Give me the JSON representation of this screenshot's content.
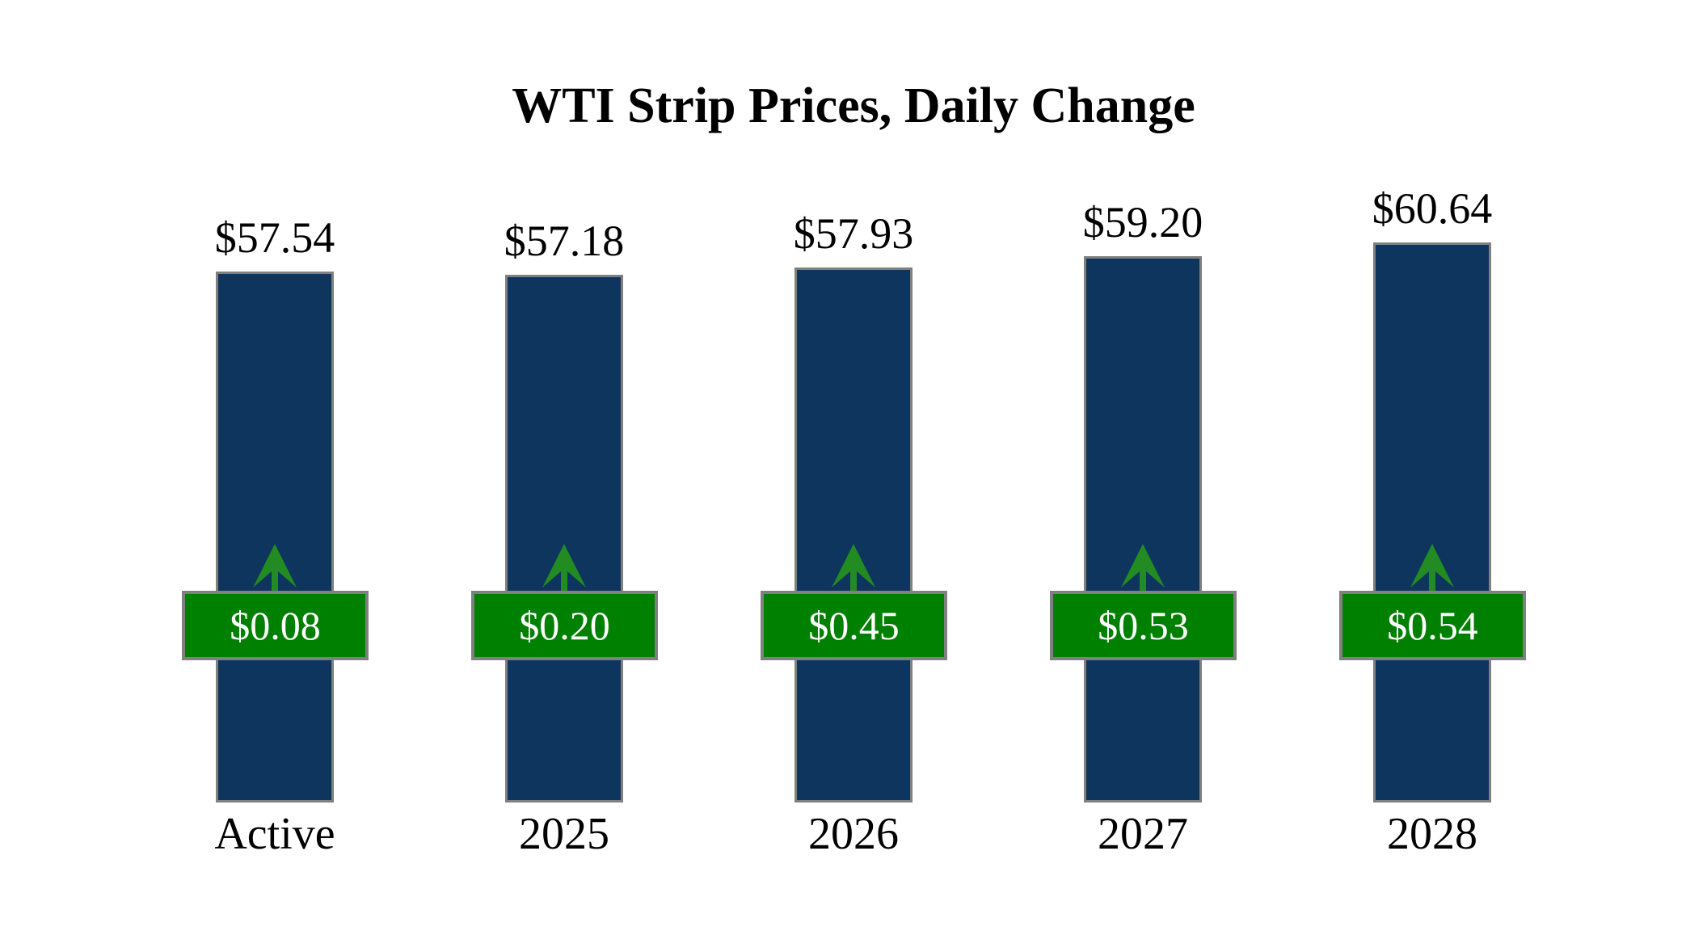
{
  "title": "WTI Strip Prices, Daily Change",
  "chart_data": {
    "type": "bar",
    "title": "WTI Strip Prices, Daily Change",
    "categories": [
      "Active",
      "2025",
      "2026",
      "2027",
      "2028"
    ],
    "series": [
      {
        "name": "Strip Price",
        "values": [
          57.54,
          57.18,
          57.93,
          59.2,
          60.64
        ],
        "labels": [
          "$57.54",
          "$57.18",
          "$57.93",
          "$59.20",
          "$60.64"
        ]
      },
      {
        "name": "Daily Change",
        "values": [
          0.08,
          0.2,
          0.45,
          0.53,
          0.54
        ],
        "labels": [
          "$0.08",
          "$0.20",
          "$0.45",
          "$0.53",
          "$0.54"
        ],
        "direction": "up"
      }
    ],
    "xlabel": "",
    "ylabel": "",
    "ylim": [
      0,
      87
    ],
    "grid": false,
    "legend": false,
    "colors": {
      "background": "#ffffff",
      "bar_fill": "#0e355e",
      "bar_border": "#808080",
      "badge_fill": "#008000",
      "badge_border": "#808080",
      "badge_text": "#ffffff",
      "arrow": "#228b22",
      "label_text": "#000000"
    }
  }
}
